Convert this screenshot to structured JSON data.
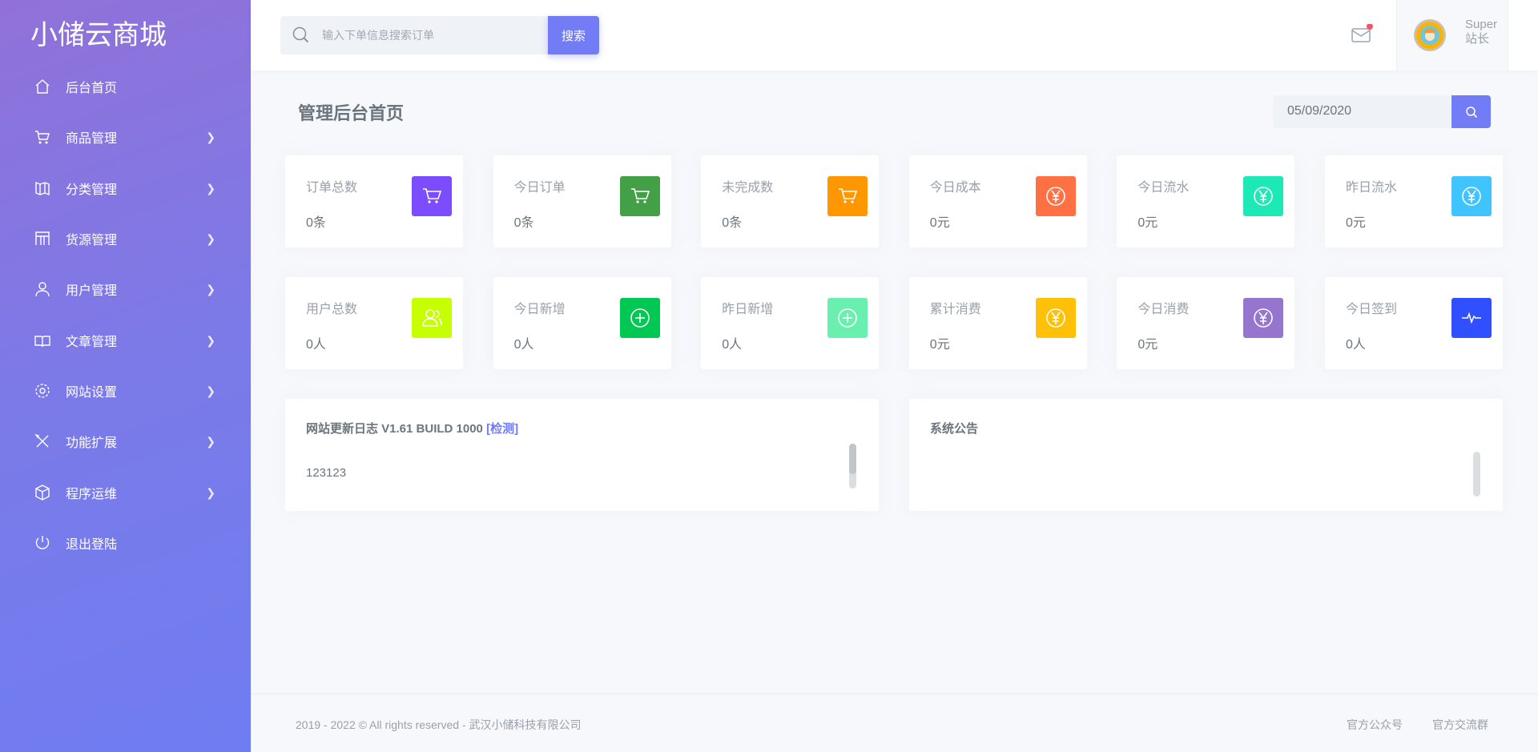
{
  "sidebar": {
    "brand": "小储云商城",
    "items": [
      {
        "label": "后台首页",
        "icon": "home-icon",
        "chevron": false
      },
      {
        "label": "商品管理",
        "icon": "cart-icon",
        "chevron": true
      },
      {
        "label": "分类管理",
        "icon": "map-icon",
        "chevron": true
      },
      {
        "label": "货源管理",
        "icon": "grid-icon",
        "chevron": true
      },
      {
        "label": "用户管理",
        "icon": "user-icon",
        "chevron": true
      },
      {
        "label": "文章管理",
        "icon": "book-icon",
        "chevron": true
      },
      {
        "label": "网站设置",
        "icon": "gear-icon",
        "chevron": true
      },
      {
        "label": "功能扩展",
        "icon": "tools-icon",
        "chevron": true
      },
      {
        "label": "程序运维",
        "icon": "box-icon",
        "chevron": true
      },
      {
        "label": "退出登陆",
        "icon": "power-icon",
        "chevron": false
      }
    ]
  },
  "header": {
    "search_placeholder": "输入下单信息搜索订单",
    "search_label": "搜索",
    "user_name": "Super",
    "user_role": "站长",
    "notification_dot_color": "#f1556c"
  },
  "main": {
    "title": "管理后台首页",
    "date": "05/09/2020",
    "stats": [
      {
        "label": "订单总数",
        "value": "0条",
        "icon": "cart-icon",
        "color": "#7c4dff"
      },
      {
        "label": "今日订单",
        "value": "0条",
        "icon": "cart-icon",
        "color": "#43a047"
      },
      {
        "label": "未完成数",
        "value": "0条",
        "icon": "cart-icon",
        "color": "#ff9800"
      },
      {
        "label": "今日成本",
        "value": "0元",
        "icon": "yen-icon",
        "color": "#ff7043"
      },
      {
        "label": "今日流水",
        "value": "0元",
        "icon": "yen-icon",
        "color": "#1de9b6"
      },
      {
        "label": "昨日流水",
        "value": "0元",
        "icon": "yen-icon",
        "color": "#40c4ff"
      },
      {
        "label": "用户总数",
        "value": "0人",
        "icon": "users-icon",
        "color": "#c6ff00"
      },
      {
        "label": "今日新增",
        "value": "0人",
        "icon": "plus-circle-icon",
        "color": "#00c853"
      },
      {
        "label": "昨日新增",
        "value": "0人",
        "icon": "plus-circle-icon",
        "color": "#69f0ae"
      },
      {
        "label": "累计消费",
        "value": "0元",
        "icon": "yen-icon",
        "color": "#ffc107"
      },
      {
        "label": "今日消费",
        "value": "0元",
        "icon": "yen-icon",
        "color": "#9575cd"
      },
      {
        "label": "今日签到",
        "value": "0人",
        "icon": "pulse-icon",
        "color": "#304ffe"
      }
    ],
    "changelog": {
      "title": "网站更新日志 V1.61 BUILD 1000",
      "check_link": "[检测]",
      "content": "123123"
    },
    "notice": {
      "title": "系统公告"
    }
  },
  "footer": {
    "copyright": "2019 - 2022 © All rights reserved - 武汉小储科技有限公司",
    "links": [
      "官方公众号",
      "官方交流群"
    ]
  }
}
